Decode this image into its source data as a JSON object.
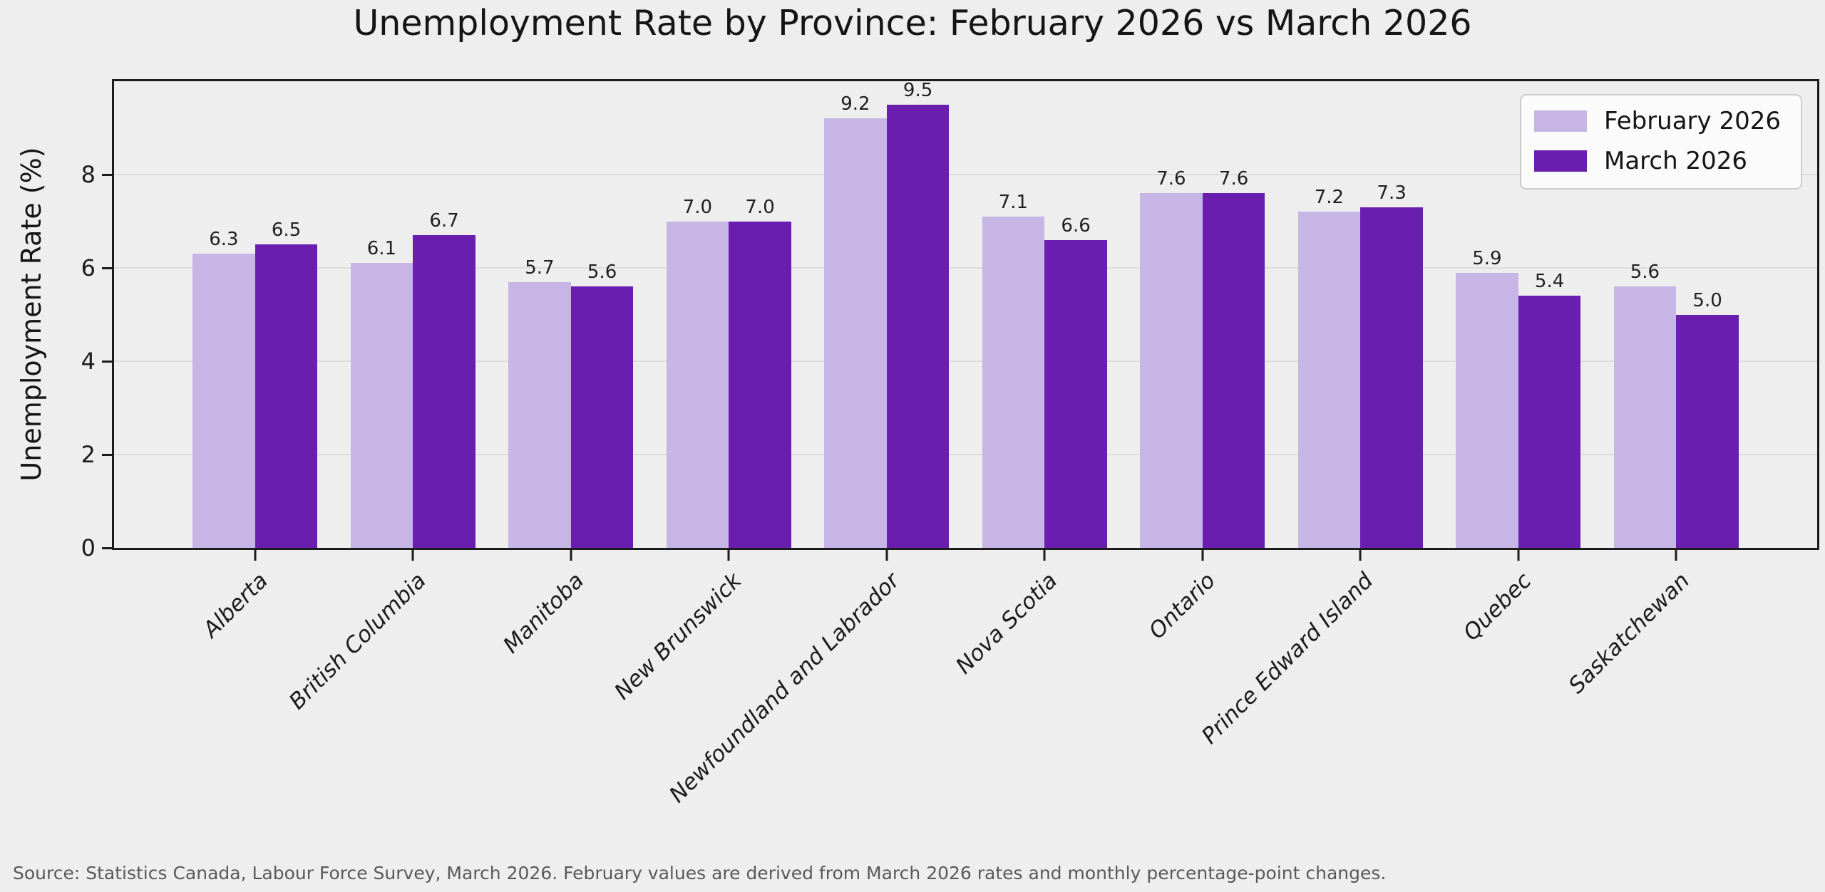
{
  "title": "Unemployment Rate by Province: February 2026 vs March 2026",
  "source_note": "Source: Statistics Canada, Labour Force Survey, March 2026. February values are derived from March 2026 rates and monthly percentage-point changes.",
  "colors": {
    "background": "#eeeeee",
    "plot_border": "#1c1c1c",
    "gridline": "#dddddd",
    "february_bar": "#c7b5e6",
    "march_bar": "#6a1eb0",
    "source_text": "#595959"
  },
  "chart_data": {
    "type": "bar",
    "title": "Unemployment Rate by Province: February 2026 vs March 2026",
    "xlabel": "",
    "ylabel": "Unemployment Rate (%)",
    "ylim": [
      0,
      10
    ],
    "yticks": [
      0,
      2,
      4,
      6,
      8
    ],
    "grid": true,
    "value_labels": true,
    "value_label_format": "0.1f",
    "legend_position": "upper right",
    "categories": [
      "Alberta",
      "British Columbia",
      "Manitoba",
      "New Brunswick",
      "Newfoundland and Labrador",
      "Nova Scotia",
      "Ontario",
      "Prince Edward Island",
      "Quebec",
      "Saskatchewan"
    ],
    "series": [
      {
        "name": "February 2026",
        "color": "#c7b5e6",
        "values": [
          6.3,
          6.1,
          5.7,
          7.0,
          9.2,
          7.1,
          7.6,
          7.2,
          5.9,
          5.6
        ]
      },
      {
        "name": "March 2026",
        "color": "#6a1eb0",
        "values": [
          6.5,
          6.7,
          5.6,
          7.0,
          9.5,
          6.6,
          7.6,
          7.3,
          5.4,
          5.0
        ]
      }
    ]
  }
}
